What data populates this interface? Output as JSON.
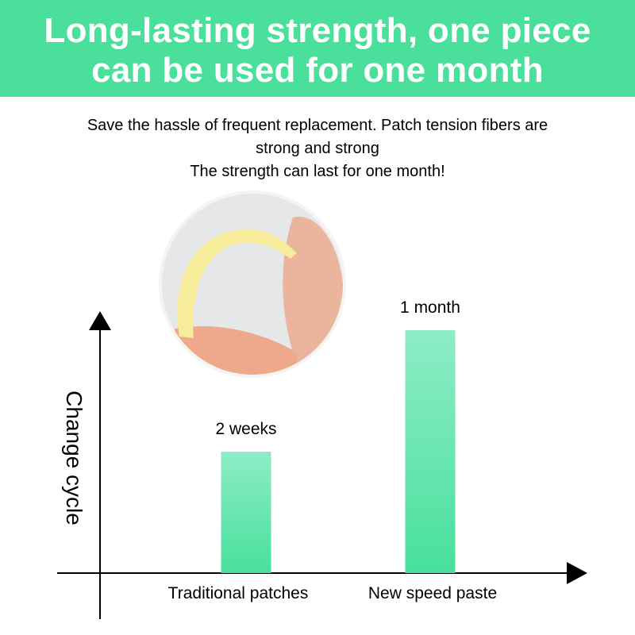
{
  "header": {
    "line1": "Long-lasting strength, one piece",
    "line2": "can be used for one month"
  },
  "subtitle": {
    "line1": "Save the hassle of frequent replacement. Patch tension fibers are",
    "line2": "strong and strong",
    "line3": "The strength can last for one month!"
  },
  "colors": {
    "brand": "#4ae09c",
    "bar_top": "#8eecc6",
    "bar_bottom": "#48e09c"
  },
  "image": {
    "icon": "patch-on-finger-photo"
  },
  "chart_data": {
    "type": "bar",
    "ylabel": "Change cycle",
    "xlabel": "",
    "categories": [
      "Traditional patches",
      "New speed paste"
    ],
    "values": [
      2,
      4
    ],
    "value_unit": "weeks",
    "data_labels": [
      "2 weeks",
      "1 month"
    ],
    "grid": false,
    "ylim": [
      0,
      4
    ]
  }
}
